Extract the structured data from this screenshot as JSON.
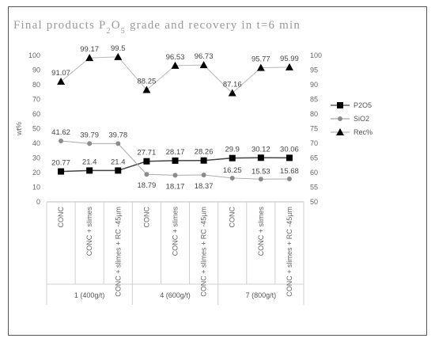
{
  "chart_data": {
    "type": "line",
    "title": "Final products P2O5 grade and recovery in t=6 min",
    "title_parts": {
      "pre": "Final products P",
      "sub": "2",
      "mid": "O",
      "sub2": "5",
      "post": " grade and recovery in t=6 min"
    },
    "ylabel": "wt%",
    "ylim": [
      0,
      100
    ],
    "y_ticks": [
      "0",
      "10",
      "20",
      "30",
      "40",
      "50",
      "60",
      "70",
      "80",
      "90",
      "100"
    ],
    "y2lim": [
      50,
      100
    ],
    "y2_ticks": [
      "50",
      "55",
      "60",
      "65",
      "70",
      "75",
      "80",
      "85",
      "90",
      "95",
      "100"
    ],
    "categories": [
      "CONC",
      "CONC + slimes",
      "CONC + slimes + RC -45µm",
      "CONC",
      "CONC + slimes",
      "CONC + slimes + RC -45µm",
      "CONC",
      "CONC + slimes",
      "CONC + slimes + RC -45µm"
    ],
    "groups": [
      "1 (400g/t)",
      "4 (600g/t)",
      "7 (800g/t)"
    ],
    "series": [
      {
        "name": "P2O5",
        "axis": "left",
        "marker": "square",
        "color": "#000000",
        "values": [
          20.77,
          21.4,
          21.4,
          27.71,
          28.17,
          28.26,
          29.9,
          30.12,
          30.06
        ],
        "labels": [
          "20.77",
          "21.4",
          "21.4",
          "27.71",
          "28.17",
          "28.26",
          "29.9",
          "30.12",
          "30.06"
        ]
      },
      {
        "name": "SiO2",
        "axis": "left",
        "marker": "circle",
        "color": "#8c8c8c",
        "values": [
          41.62,
          39.79,
          39.78,
          18.79,
          18.17,
          18.37,
          16.25,
          15.53,
          15.68
        ],
        "labels": [
          "41.62",
          "39.79",
          "39.78",
          "18.79",
          "18.17",
          "18.37",
          "16.25",
          "15.53",
          "15.68"
        ]
      },
      {
        "name": "Rec%",
        "axis": "right",
        "marker": "triangle",
        "color": "#000000",
        "values": [
          91.07,
          99.17,
          99.5,
          88.25,
          96.53,
          96.73,
          87.16,
          95.77,
          95.99
        ],
        "labels": [
          "91.07",
          "99.17",
          "99.5",
          "88.25",
          "96.53",
          "96.73",
          "87.16",
          "95.77",
          "95.99"
        ]
      }
    ],
    "legend": "right",
    "grid": false
  }
}
